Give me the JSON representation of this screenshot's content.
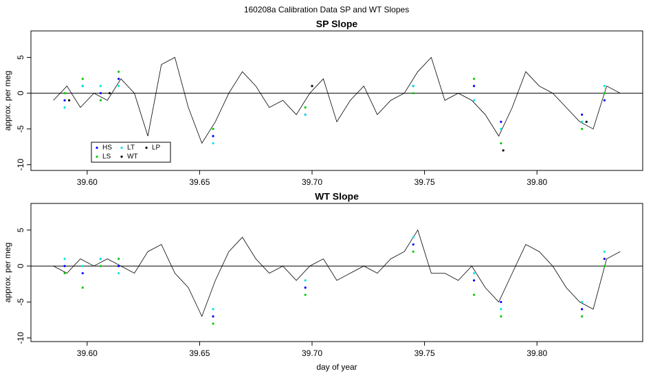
{
  "title": "160208a   Calibration Data SP and WT Slopes",
  "chart_data": [
    {
      "type": "line",
      "title": "SP Slope",
      "ylabel": "approx. per meg",
      "xlim": [
        39.575,
        39.847
      ],
      "ylim": [
        -10.8,
        8.7
      ],
      "hline": 0,
      "xticks": [
        {
          "value": 39.6,
          "label": "39.60"
        },
        {
          "value": 39.65,
          "label": "39.65"
        },
        {
          "value": 39.7,
          "label": "39.70"
        },
        {
          "value": 39.75,
          "label": "39.75"
        },
        {
          "value": 39.8,
          "label": "39.80"
        }
      ],
      "yticks": [
        5,
        0,
        -5,
        -10
      ],
      "legend": "bottom-left",
      "series": [
        {
          "name": "HS",
          "color": "#0000ff",
          "style": "points",
          "x": [
            39.59,
            39.598,
            39.606,
            39.614,
            39.656,
            39.697,
            39.745,
            39.772,
            39.784,
            39.82,
            39.83
          ],
          "values": [
            -1,
            1,
            0,
            2,
            -6,
            -3,
            1,
            1,
            -4,
            -3,
            -1
          ]
        },
        {
          "name": "LS",
          "color": "#00cc00",
          "style": "points",
          "x": [
            39.59,
            39.598,
            39.606,
            39.614,
            39.656,
            39.697,
            39.745,
            39.772,
            39.784,
            39.82,
            39.83
          ],
          "values": [
            0,
            2,
            -1,
            3,
            -5,
            -2,
            0,
            2,
            -7,
            -5,
            0
          ]
        },
        {
          "name": "LT",
          "color": "#00e5e5",
          "style": "points",
          "x": [
            39.59,
            39.598,
            39.606,
            39.614,
            39.656,
            39.697,
            39.745,
            39.772,
            39.784,
            39.82,
            39.83
          ],
          "values": [
            -2,
            1,
            1,
            1,
            -7,
            -3,
            1,
            -1,
            -5,
            -4,
            1
          ]
        },
        {
          "name": "WT",
          "color": "#000000",
          "style": "line",
          "x": [
            39.585,
            39.591,
            39.597,
            39.603,
            39.609,
            39.615,
            39.621,
            39.627,
            39.633,
            39.639,
            39.645,
            39.651,
            39.657,
            39.663,
            39.669,
            39.675,
            39.681,
            39.687,
            39.693,
            39.699,
            39.705,
            39.711,
            39.717,
            39.723,
            39.729,
            39.735,
            39.741,
            39.747,
            39.753,
            39.759,
            39.765,
            39.771,
            39.777,
            39.783,
            39.789,
            39.795,
            39.801,
            39.807,
            39.813,
            39.819,
            39.825,
            39.831,
            39.837
          ],
          "values": [
            -1,
            1,
            -2,
            0,
            -1,
            2,
            0,
            -6,
            4,
            5,
            -2,
            -7,
            -4,
            0,
            3,
            1,
            -2,
            -1,
            -3,
            0,
            2,
            -4,
            -1,
            1,
            -3,
            -1,
            0,
            3,
            5,
            -1,
            0,
            -1,
            -3,
            -6,
            -2,
            3,
            1,
            0,
            -2,
            -4,
            -5,
            1,
            0
          ]
        },
        {
          "name": "LP",
          "color": "#000000",
          "style": "points",
          "x": [
            39.592,
            39.61,
            39.7,
            39.785,
            39.822
          ],
          "values": [
            -1,
            0,
            1,
            -8,
            -4
          ]
        }
      ]
    },
    {
      "type": "line",
      "title": "WT Slope",
      "ylabel": "approx. per meg",
      "xlabel": "day of year",
      "xlim": [
        39.575,
        39.847
      ],
      "ylim": [
        -10.5,
        8.7
      ],
      "hline": 0,
      "xticks": [
        {
          "value": 39.6,
          "label": "39.60"
        },
        {
          "value": 39.65,
          "label": "39.65"
        },
        {
          "value": 39.7,
          "label": "39.70"
        },
        {
          "value": 39.75,
          "label": "39.75"
        },
        {
          "value": 39.8,
          "label": "39.80"
        }
      ],
      "yticks": [
        5,
        0,
        -5,
        -10
      ],
      "series": [
        {
          "color": "#0000ff",
          "style": "points",
          "x": [
            39.59,
            39.598,
            39.606,
            39.614,
            39.656,
            39.697,
            39.745,
            39.772,
            39.784,
            39.82,
            39.83
          ],
          "values": [
            0,
            -1,
            1,
            0,
            -7,
            -3,
            3,
            -2,
            -5,
            -6,
            1
          ]
        },
        {
          "color": "#00cc00",
          "style": "points",
          "x": [
            39.59,
            39.598,
            39.606,
            39.614,
            39.656,
            39.697,
            39.745,
            39.772,
            39.784,
            39.82,
            39.83
          ],
          "values": [
            -1,
            -3,
            0,
            1,
            -8,
            -4,
            2,
            -4,
            -7,
            -7,
            0
          ]
        },
        {
          "color": "#00e5e5",
          "style": "points",
          "x": [
            39.59,
            39.598,
            39.606,
            39.614,
            39.656,
            39.697,
            39.745,
            39.772,
            39.784,
            39.82,
            39.83
          ],
          "values": [
            1,
            0,
            1,
            -1,
            -6,
            -2,
            4,
            -1,
            -6,
            -5,
            2
          ]
        },
        {
          "color": "#000000",
          "style": "line",
          "x": [
            39.585,
            39.591,
            39.597,
            39.603,
            39.609,
            39.615,
            39.621,
            39.627,
            39.633,
            39.639,
            39.645,
            39.651,
            39.657,
            39.663,
            39.669,
            39.675,
            39.681,
            39.687,
            39.693,
            39.699,
            39.705,
            39.711,
            39.717,
            39.723,
            39.729,
            39.735,
            39.741,
            39.747,
            39.753,
            39.759,
            39.765,
            39.771,
            39.777,
            39.783,
            39.789,
            39.795,
            39.801,
            39.807,
            39.813,
            39.819,
            39.825,
            39.831,
            39.837
          ],
          "values": [
            0,
            -1,
            1,
            0,
            1,
            0,
            -1,
            2,
            3,
            -1,
            -3,
            -7,
            -2,
            2,
            4,
            1,
            -1,
            0,
            -2,
            0,
            1,
            -2,
            -1,
            0,
            -1,
            1,
            2,
            5,
            -1,
            -1,
            -2,
            0,
            -3,
            -5,
            -1,
            3,
            2,
            0,
            -3,
            -5,
            -6,
            1,
            2
          ]
        }
      ]
    }
  ]
}
